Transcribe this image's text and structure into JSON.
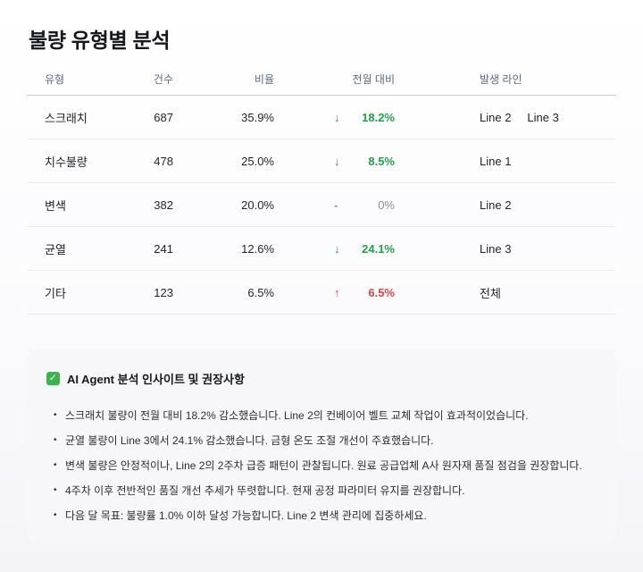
{
  "title": "불량 유형별 분석",
  "table": {
    "headers": {
      "type": "유형",
      "count": "건수",
      "ratio": "비율",
      "change": "전월 대비",
      "lines": "발생 라인"
    },
    "rows": [
      {
        "type": "스크래치",
        "count": "687",
        "ratio": "35.9%",
        "arrow": "↓",
        "change": "18.2%",
        "direction": "down",
        "lines": [
          "Line 2",
          "Line 3"
        ]
      },
      {
        "type": "치수불량",
        "count": "478",
        "ratio": "25.0%",
        "arrow": "↓",
        "change": "8.5%",
        "direction": "down",
        "lines": [
          "Line 1"
        ]
      },
      {
        "type": "변색",
        "count": "382",
        "ratio": "20.0%",
        "arrow": "-",
        "change": "0%",
        "direction": "flat",
        "lines": [
          "Line 2"
        ]
      },
      {
        "type": "균열",
        "count": "241",
        "ratio": "12.6%",
        "arrow": "↓",
        "change": "24.1%",
        "direction": "down",
        "lines": [
          "Line 3"
        ]
      },
      {
        "type": "기타",
        "count": "123",
        "ratio": "6.5%",
        "arrow": "↑",
        "change": "6.5%",
        "direction": "up",
        "lines": [
          "전체"
        ]
      }
    ]
  },
  "insights_panel": {
    "icon": "check-box-icon",
    "title": "AI Agent 분석 인사이트 및 권장사항",
    "items": [
      "스크래치 불량이 전월 대비 18.2% 감소했습니다. Line 2의 컨베이어 벨트 교체 작업이 효과적이었습니다.",
      "균열 불량이 Line 3에서 24.1% 감소했습니다. 금형 온도 조절 개선이 주효했습니다.",
      "변색 불량은 안정적이나, Line 2의 2주차 급증 패턴이 관찰됩니다. 원료 공급업체 A사 원자재 품질 점검을 권장합니다.",
      "4주차 이후 전반적인 품질 개선 추세가 뚜렷합니다. 현재 공정 파라미터 유지를 권장합니다.",
      "다음 달 목표: 불량률 1.0% 이하 달성 가능합니다. Line 2 변색 관리에 집중하세요."
    ]
  },
  "colors": {
    "decrease": "#1fa34a",
    "increase": "#e0444a",
    "neutral": "#8a8d94",
    "header_text": "#5a6b8a"
  }
}
